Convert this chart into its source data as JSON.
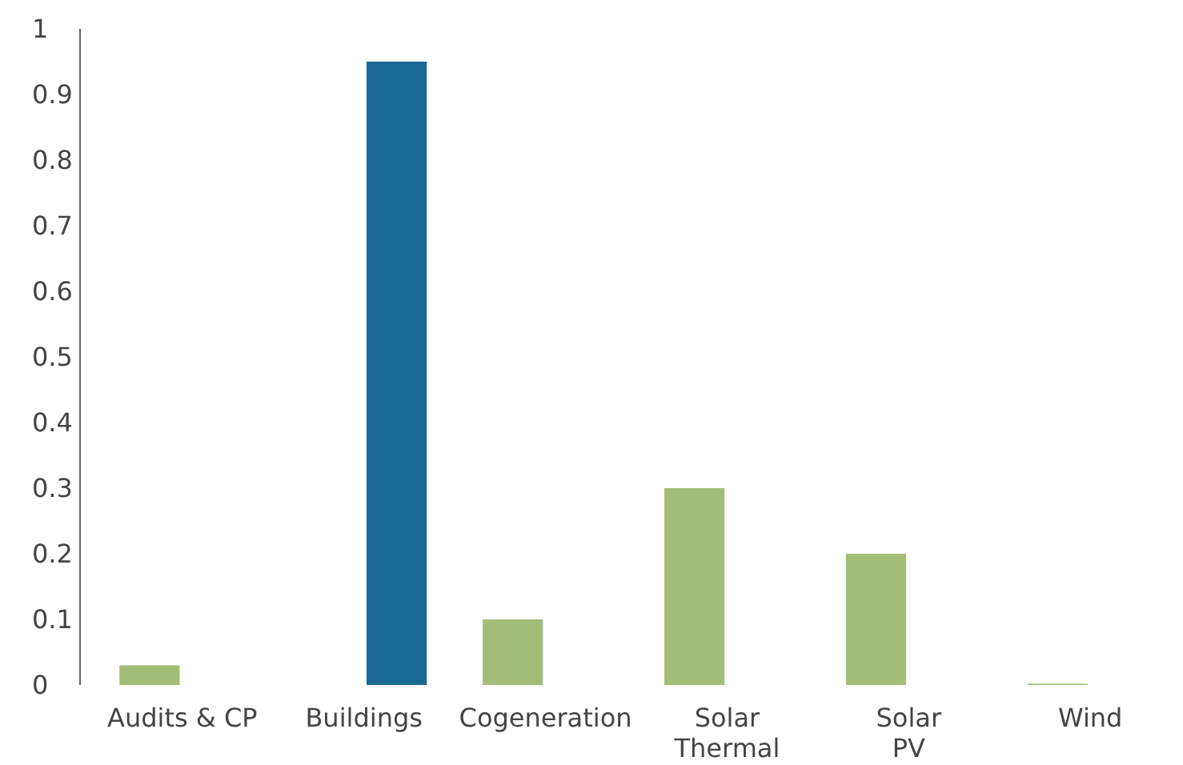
{
  "chart_data": {
    "type": "bar",
    "categories": [
      "Audits & CP",
      "Buildings",
      "Cogeneration",
      "Solar\nThermal",
      "Solar\nPV",
      "Wind"
    ],
    "series": [
      {
        "color": "#a3bd78",
        "values": [
          0.03,
          0,
          0.1,
          0.3,
          0.2,
          0.002
        ]
      },
      {
        "color": "#196896",
        "values": [
          0,
          0.95,
          0,
          0,
          0,
          0
        ]
      }
    ],
    "ylim": [
      0,
      1
    ],
    "yticks": [
      0,
      0.1,
      0.2,
      0.3,
      0.4,
      0.5,
      0.6,
      0.7,
      0.8,
      0.9,
      1
    ],
    "grid": false
  }
}
